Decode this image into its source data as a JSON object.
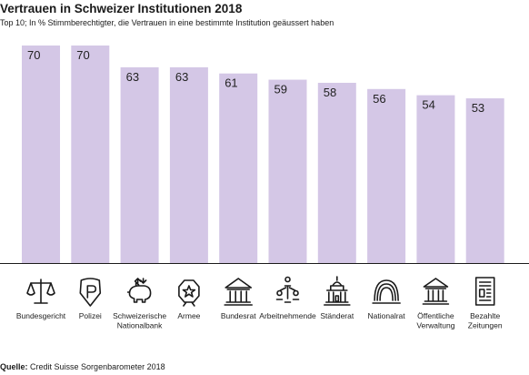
{
  "header": {
    "title": "Vertrauen in Schweizer Institutionen 2018",
    "subtitle": "Top 10; In % Stimmberechtigter, die Vertrauen in eine bestimmte Institution geäussert haben"
  },
  "footer": {
    "source_label": "Quelle:",
    "source_text": "Credit Suisse Sorgenbarometer 2018"
  },
  "colors": {
    "bar": "#d4c7e6",
    "axis": "#1a1a1a",
    "text": "#222222"
  },
  "chart_data": {
    "type": "bar",
    "title": "Vertrauen in Schweizer Institutionen 2018",
    "subtitle": "Top 10; In % Stimmberechtigter, die Vertrauen in eine bestimmte Institution geäussert haben",
    "xlabel": "",
    "ylabel": "",
    "ylim": [
      0,
      70
    ],
    "grid": false,
    "categories": [
      [
        "Bundesgericht"
      ],
      [
        "Polizei"
      ],
      [
        "Schweizerische",
        "Nationalbank"
      ],
      [
        "Armee"
      ],
      [
        "Bundesrat"
      ],
      [
        "Arbeitnehmende"
      ],
      [
        "Ständerat"
      ],
      [
        "Nationalrat"
      ],
      [
        "Öffentliche",
        "Verwaltung"
      ],
      [
        "Bezahlte",
        "Zeitungen"
      ]
    ],
    "values": [
      70,
      70,
      63,
      63,
      61,
      59,
      58,
      56,
      54,
      53
    ],
    "icons": [
      "scales-icon",
      "police-badge-icon",
      "piggy-bank-icon",
      "army-badge-icon",
      "government-building-icon",
      "people-network-icon",
      "council-building-icon",
      "arch-icon",
      "administration-building-icon",
      "newspaper-icon"
    ]
  }
}
